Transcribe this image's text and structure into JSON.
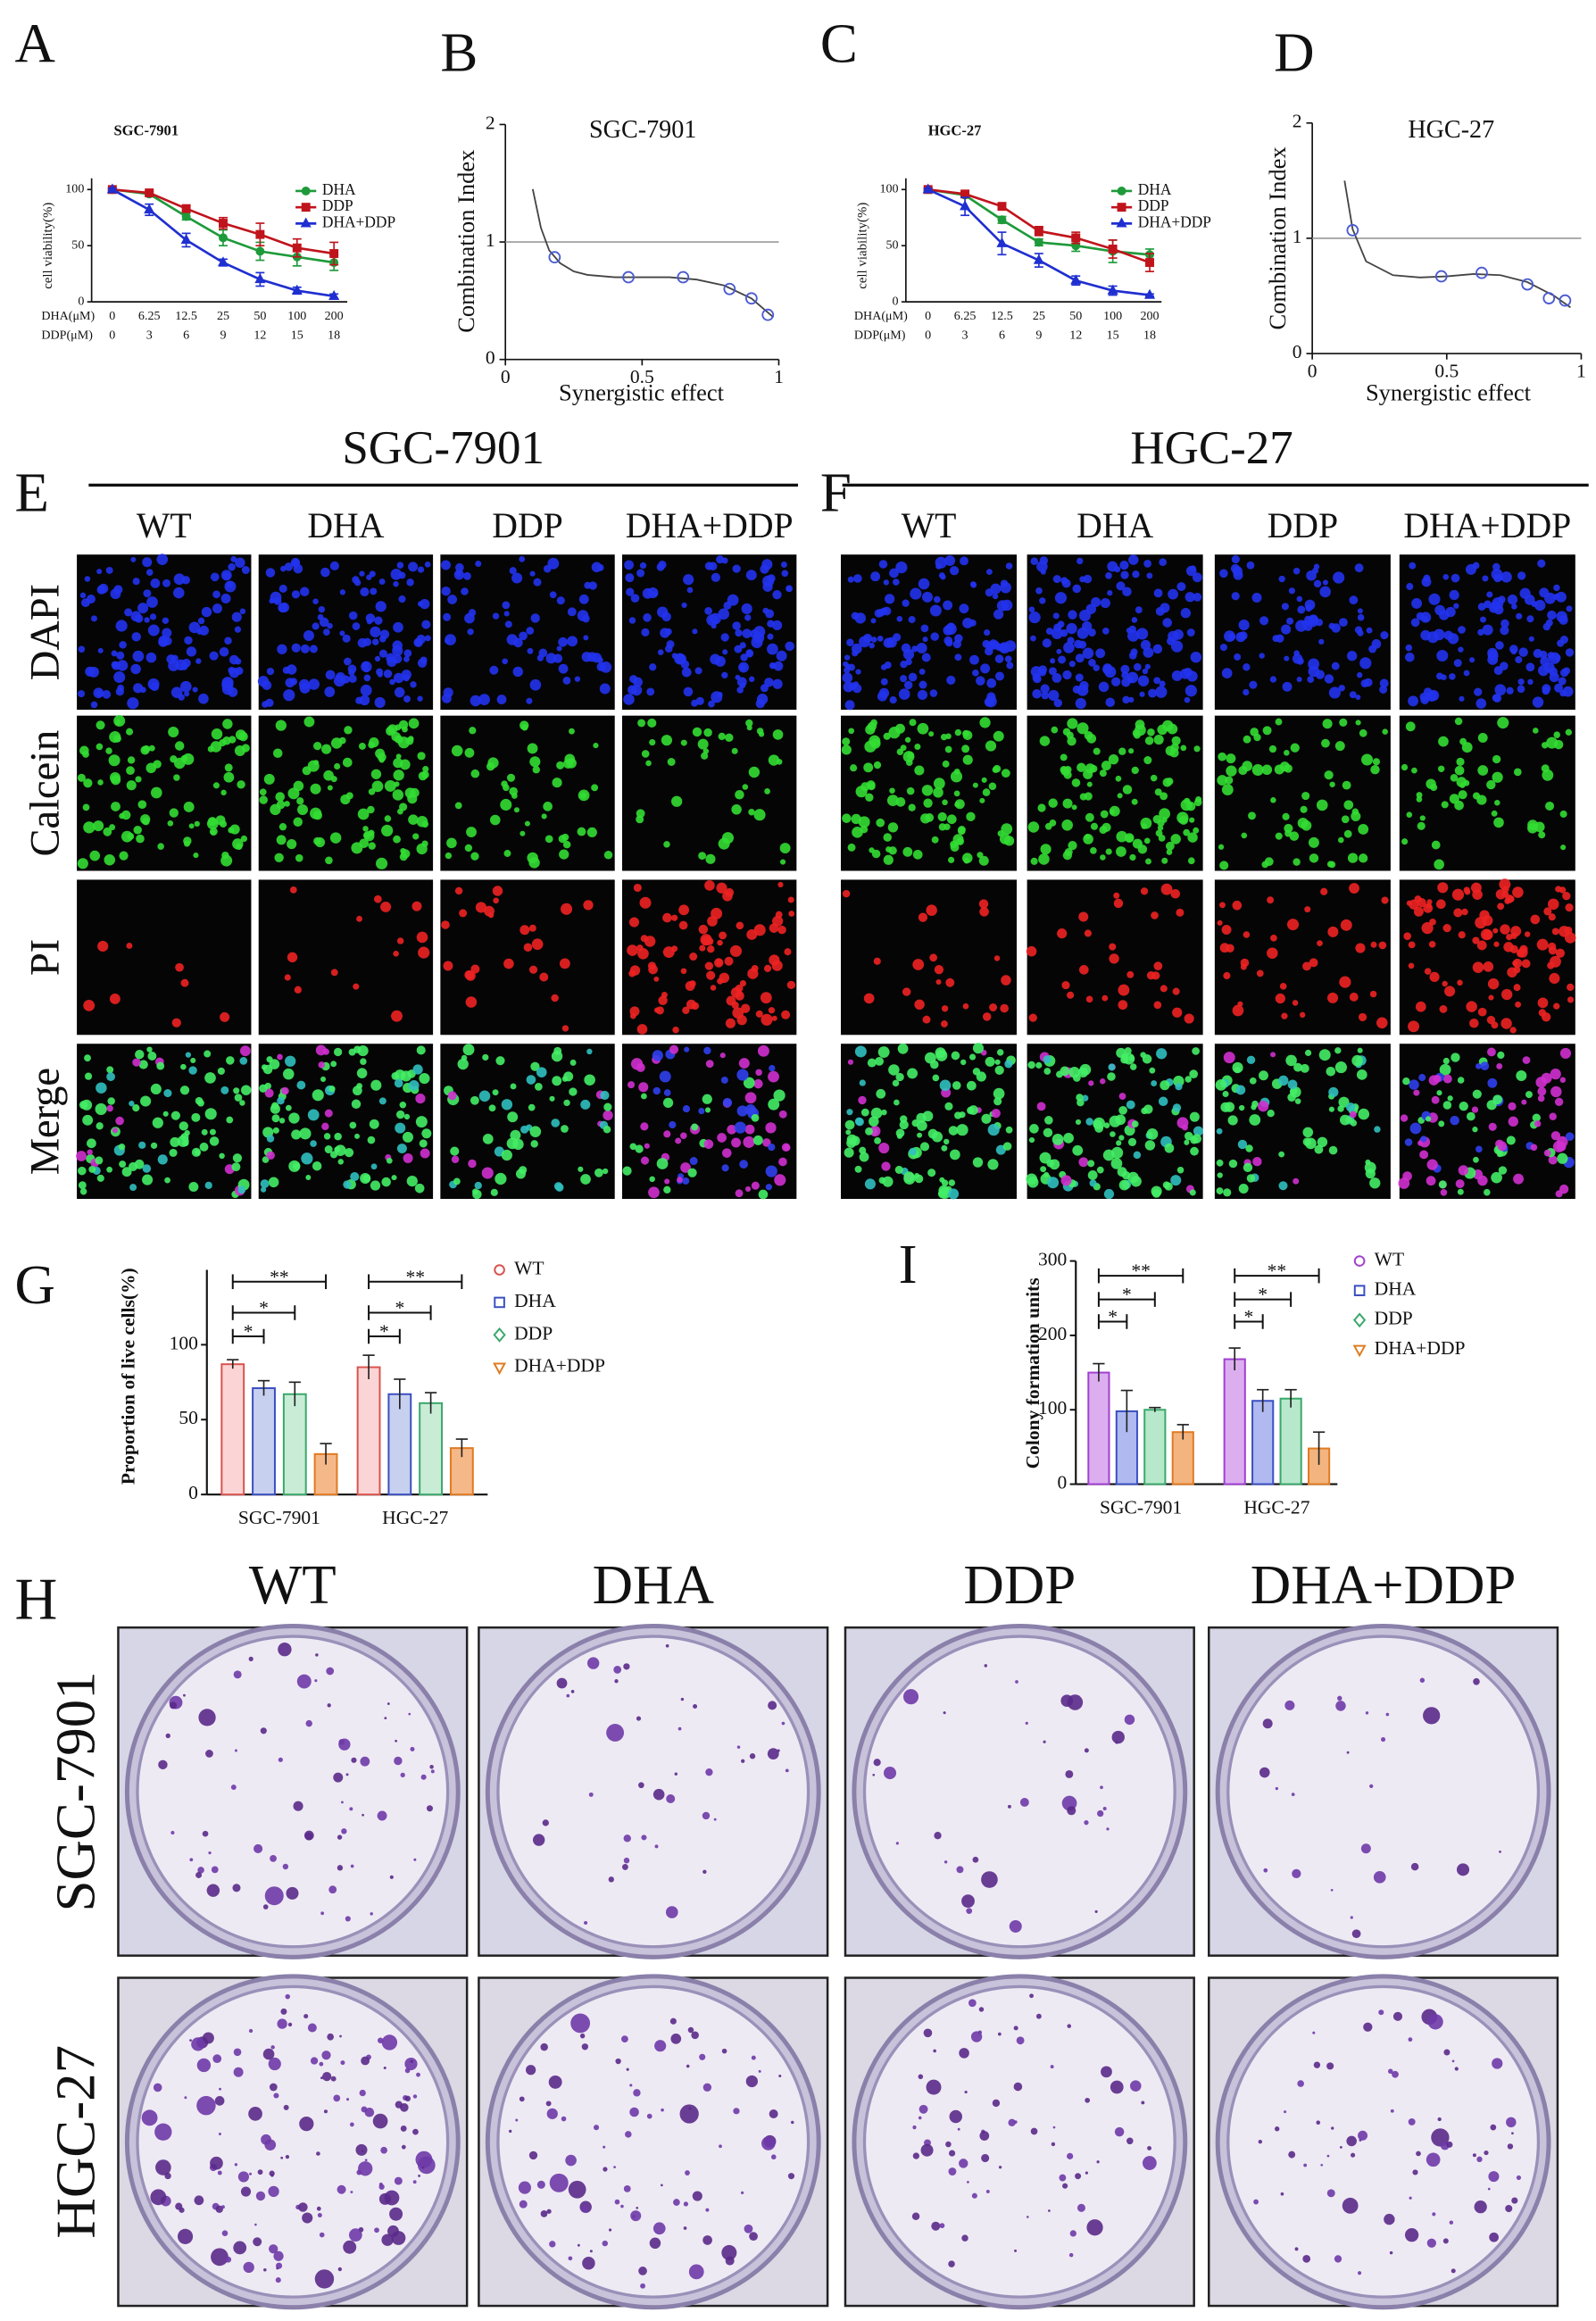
{
  "chart_data": [
    {
      "panel": "A",
      "type": "line",
      "title": "SGC-7901",
      "ylabel": "cell viability(%)",
      "category_rows": [
        "DHA(μM)",
        "DDP(μM)"
      ],
      "categories": [
        "0",
        "6.25",
        "12.5",
        "25",
        "50",
        "100",
        "200"
      ],
      "categories2": [
        "0",
        "3",
        "6",
        "9",
        "12",
        "15",
        "18"
      ],
      "ylim": [
        0,
        110
      ],
      "yticks": [
        0,
        50,
        100
      ],
      "series": [
        {
          "name": "DHA",
          "color": "#1e9a3a",
          "marker": "circle",
          "values": [
            100,
            96,
            76,
            57,
            45,
            40,
            35
          ],
          "errors": [
            1,
            2,
            3,
            7,
            8,
            8,
            7
          ]
        },
        {
          "name": "DDP",
          "color": "#c0141c",
          "marker": "square",
          "values": [
            100,
            97,
            83,
            70,
            60,
            48,
            43
          ],
          "errors": [
            1,
            2,
            3,
            5,
            10,
            8,
            10
          ]
        },
        {
          "name": "DHA+DDP",
          "color": "#1f2fd0",
          "marker": "triangle",
          "values": [
            100,
            82,
            55,
            35,
            20,
            10,
            5
          ],
          "errors": [
            1,
            5,
            6,
            3,
            6,
            3,
            2
          ]
        }
      ]
    },
    {
      "panel": "B",
      "type": "scatter",
      "title": "SGC-7901",
      "xlabel": "Synergistic effect",
      "ylabel": "Combination Index",
      "x": [
        0.18,
        0.45,
        0.65,
        0.82,
        0.9,
        0.96
      ],
      "values": [
        0.87,
        0.7,
        0.7,
        0.6,
        0.52,
        0.38
      ],
      "color": "#4a5ad0",
      "xlim": [
        0,
        1
      ],
      "ylim": [
        0,
        2
      ],
      "xticks": [
        0,
        0.5,
        1
      ],
      "yticks": [
        0,
        1,
        2
      ],
      "reference_line": 1,
      "curve": {
        "x": [
          0.1,
          0.13,
          0.16,
          0.2,
          0.25,
          0.3,
          0.4,
          0.5,
          0.6,
          0.7,
          0.8,
          0.9,
          0.98
        ],
        "values": [
          1.45,
          1.12,
          0.93,
          0.82,
          0.75,
          0.72,
          0.7,
          0.7,
          0.7,
          0.68,
          0.63,
          0.52,
          0.36
        ]
      }
    },
    {
      "panel": "C",
      "type": "line",
      "title": "HGC-27",
      "ylabel": "cell viability(%)",
      "category_rows": [
        "DHA(μM)",
        "DDP(μM)"
      ],
      "categories": [
        "0",
        "6.25",
        "12.5",
        "25",
        "50",
        "100",
        "200"
      ],
      "categories2": [
        "0",
        "3",
        "6",
        "9",
        "12",
        "15",
        "18"
      ],
      "ylim": [
        0,
        110
      ],
      "yticks": [
        0,
        50,
        100
      ],
      "series": [
        {
          "name": "DHA",
          "color": "#1e9a3a",
          "marker": "circle",
          "values": [
            100,
            95,
            73,
            53,
            50,
            45,
            42
          ],
          "errors": [
            1,
            2,
            3,
            3,
            5,
            10,
            5
          ]
        },
        {
          "name": "DDP",
          "color": "#c0141c",
          "marker": "square",
          "values": [
            100,
            96,
            85,
            63,
            57,
            47,
            35
          ],
          "errors": [
            1,
            2,
            3,
            4,
            5,
            8,
            8
          ]
        },
        {
          "name": "DHA+DDP",
          "color": "#1f2fd0",
          "marker": "triangle",
          "values": [
            100,
            85,
            52,
            37,
            19,
            10,
            6
          ],
          "errors": [
            1,
            8,
            10,
            6,
            4,
            4,
            1
          ]
        }
      ]
    },
    {
      "panel": "D",
      "type": "scatter",
      "title": "HGC-27",
      "xlabel": "Synergistic effect",
      "ylabel": "Combination Index",
      "x": [
        0.15,
        0.48,
        0.63,
        0.8,
        0.88,
        0.94
      ],
      "values": [
        1.07,
        0.67,
        0.7,
        0.6,
        0.48,
        0.46
      ],
      "color": "#4a5ad0",
      "xlim": [
        0,
        1
      ],
      "ylim": [
        0,
        2
      ],
      "xticks": [
        0,
        0.5,
        1
      ],
      "yticks": [
        0,
        1,
        2
      ],
      "reference_line": 1,
      "curve": {
        "x": [
          0.12,
          0.15,
          0.2,
          0.3,
          0.4,
          0.5,
          0.6,
          0.7,
          0.8,
          0.9,
          0.96
        ],
        "values": [
          1.5,
          1.08,
          0.8,
          0.68,
          0.66,
          0.67,
          0.69,
          0.68,
          0.62,
          0.5,
          0.4
        ]
      }
    },
    {
      "panel": "G",
      "type": "bar",
      "ylabel": "Proportion of live cells(%)",
      "categories": [
        "SGC-7901",
        "HGC-27"
      ],
      "ylim": [
        0,
        150
      ],
      "yticks": [
        0,
        50,
        100
      ],
      "series": [
        {
          "name": "WT",
          "color": "#d9534f",
          "fill": "#fbd5d5",
          "marker": "circle",
          "values": [
            87,
            85
          ],
          "errors": [
            3,
            8
          ]
        },
        {
          "name": "DHA",
          "color": "#3a4fc0",
          "fill": "#c8d0f0",
          "marker": "square",
          "values": [
            71,
            67
          ],
          "errors": [
            5,
            10
          ]
        },
        {
          "name": "DDP",
          "color": "#3aa86b",
          "fill": "#c9ecd6",
          "marker": "diamond",
          "values": [
            67,
            61
          ],
          "errors": [
            8,
            7
          ]
        },
        {
          "name": "DHA+DDP",
          "color": "#e07b22",
          "fill": "#f5b889",
          "marker": "tridown",
          "values": [
            27,
            31
          ],
          "errors": [
            7,
            6
          ]
        }
      ],
      "significance": [
        [
          "*",
          "*",
          "**"
        ],
        [
          "*",
          "*",
          "**"
        ]
      ]
    },
    {
      "panel": "I",
      "type": "bar",
      "ylabel": "Colony formation units",
      "categories": [
        "SGC-7901",
        "HGC-27"
      ],
      "ylim": [
        0,
        300
      ],
      "yticks": [
        0,
        100,
        200,
        300
      ],
      "series": [
        {
          "name": "WT",
          "color": "#a040d0",
          "fill": "#dcaef0",
          "marker": "circle",
          "values": [
            150,
            168
          ],
          "errors": [
            12,
            15
          ]
        },
        {
          "name": "DHA",
          "color": "#3a4fc0",
          "fill": "#b0baf0",
          "marker": "square",
          "values": [
            98,
            112
          ],
          "errors": [
            28,
            15
          ]
        },
        {
          "name": "DDP",
          "color": "#3aa86b",
          "fill": "#b8e8cc",
          "marker": "diamond",
          "values": [
            100,
            115
          ],
          "errors": [
            3,
            12
          ]
        },
        {
          "name": "DHA+DDP",
          "color": "#e07b22",
          "fill": "#f3b47f",
          "marker": "tridown",
          "values": [
            70,
            48
          ],
          "errors": [
            10,
            22
          ]
        }
      ],
      "significance": [
        [
          "*",
          "*",
          "**"
        ],
        [
          "*",
          "*",
          "**"
        ]
      ]
    }
  ],
  "microscopy": [
    {
      "panel": "E",
      "title": "SGC-7901",
      "columns": [
        "WT",
        "DHA",
        "DDP",
        "DHA+DDP"
      ],
      "rows": [
        "DAPI",
        "Calcein",
        "PI",
        "Merge"
      ]
    },
    {
      "panel": "F",
      "title": "HGC-27",
      "columns": [
        "WT",
        "DHA",
        "DDP",
        "DHA+DDP"
      ],
      "rows": [
        "DAPI",
        "Calcein",
        "PI",
        "Merge"
      ]
    }
  ],
  "colony": {
    "panel": "H",
    "columns": [
      "WT",
      "DHA",
      "DDP",
      "DHA+DDP"
    ],
    "rows": [
      "SGC-7901",
      "HGC-27"
    ]
  }
}
